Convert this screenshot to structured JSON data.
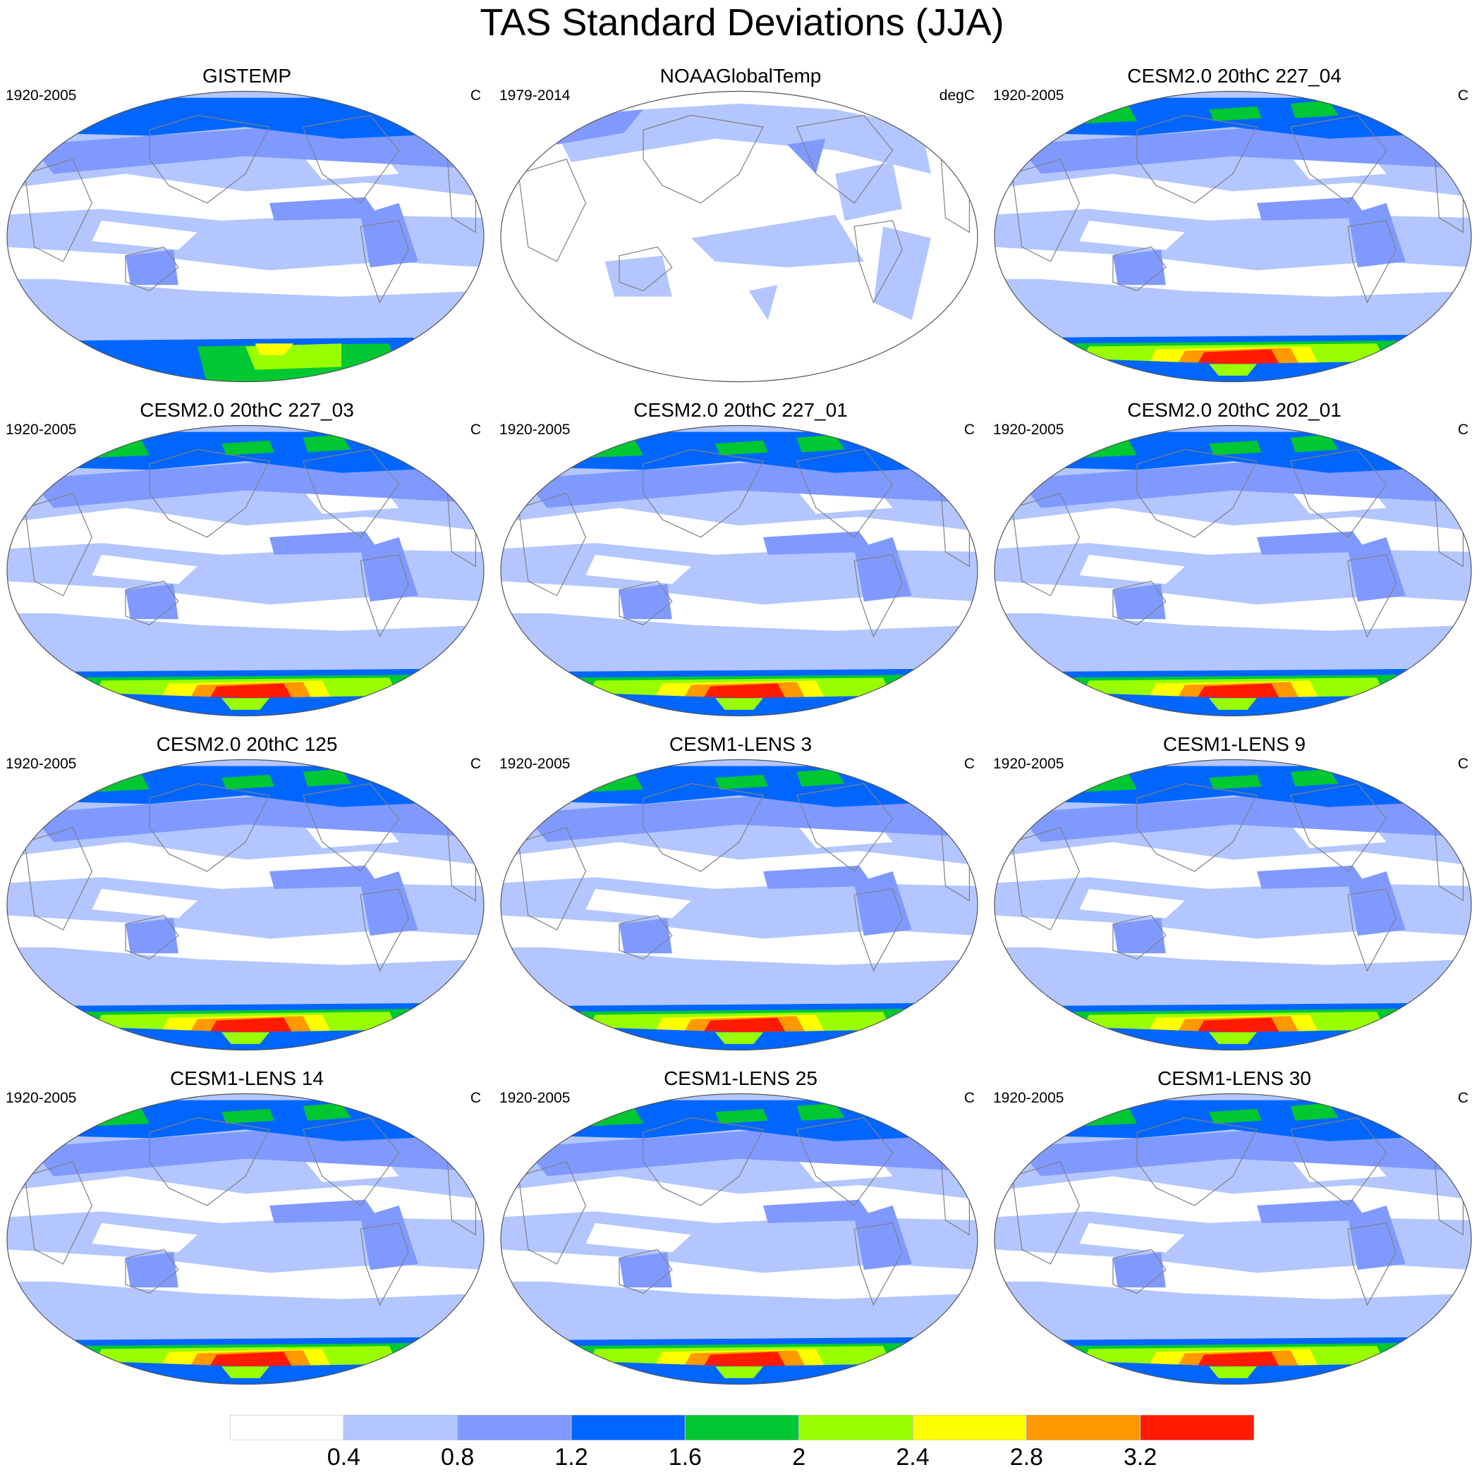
{
  "title": "TAS Standard Deviations (JJA)",
  "colors": [
    "#ffffff",
    "#b3c6ff",
    "#8099ff",
    "#0066ff",
    "#00c832",
    "#99ff00",
    "#ffff00",
    "#ff9900",
    "#ff1a00"
  ],
  "colorbar": {
    "labels": [
      "0.4",
      "0.8",
      "1.2",
      "1.6",
      "2",
      "2.4",
      "2.8",
      "3.2"
    ]
  },
  "panels": [
    {
      "title": "GISTEMP",
      "period": "1920-2005",
      "units": "C",
      "level": 1,
      "antarctic": "obs"
    },
    {
      "title": "NOAAGlobalTemp",
      "period": "1979-2014",
      "units": "degC",
      "level": 0,
      "antarctic": "none"
    },
    {
      "title": "CESM2.0 20thC 227_04",
      "period": "1920-2005",
      "units": "C",
      "level": 2,
      "antarctic": "model"
    },
    {
      "title": "CESM2.0 20thC 227_03",
      "period": "1920-2005",
      "units": "C",
      "level": 2,
      "antarctic": "model"
    },
    {
      "title": "CESM2.0 20thC 227_01",
      "period": "1920-2005",
      "units": "C",
      "level": 2,
      "antarctic": "model"
    },
    {
      "title": "CESM2.0 20thC 202_01",
      "period": "1920-2005",
      "units": "C",
      "level": 2,
      "antarctic": "model"
    },
    {
      "title": "CESM2.0 20thC 125",
      "period": "1920-2005",
      "units": "C",
      "level": 2,
      "antarctic": "model"
    },
    {
      "title": "CESM1-LENS 3",
      "period": "1920-2005",
      "units": "C",
      "level": 2,
      "antarctic": "model"
    },
    {
      "title": "CESM1-LENS 9",
      "period": "1920-2005",
      "units": "C",
      "level": 2,
      "antarctic": "model"
    },
    {
      "title": "CESM1-LENS 14",
      "period": "1920-2005",
      "units": "C",
      "level": 2,
      "antarctic": "model"
    },
    {
      "title": "CESM1-LENS 25",
      "period": "1920-2005",
      "units": "C",
      "level": 2,
      "antarctic": "model"
    },
    {
      "title": "CESM1-LENS 30",
      "period": "1920-2005",
      "units": "C",
      "level": 2,
      "antarctic": "model"
    }
  ]
}
